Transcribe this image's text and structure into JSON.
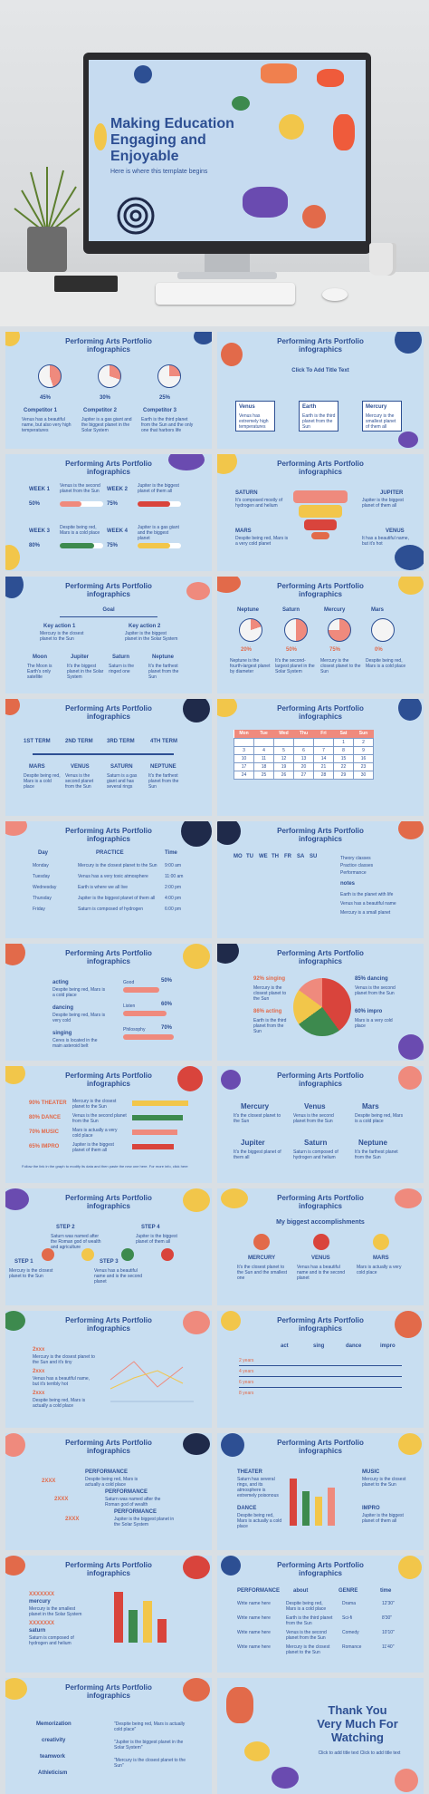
{
  "hero": {
    "title_line1": "Making Education",
    "title_line2": "Engaging and",
    "title_line3": "Enjoyable",
    "subtitle": "Here is where this template begins"
  },
  "slide_title_line1": "Performing Arts Portfolio",
  "slide_title_line2": "infographics",
  "s1": {
    "pcts": [
      "45%",
      "30%",
      "25%"
    ],
    "names": [
      "Competitor 1",
      "Competitor 2",
      "Competitor 3"
    ],
    "descs": [
      "Venus has a beautiful name, but also very high temperatures",
      "Jupiter is a gas giant and the biggest planet in the Solar System",
      "Earth is the third planet from the Sun and the only one that harbors life"
    ]
  },
  "s2": {
    "click": "Click To Add Title Text",
    "names": [
      "Venus",
      "Earth",
      "Mercury"
    ],
    "descs": [
      "Venus has extremely high temperatures",
      "Earth is the third planet from the Sun",
      "Mercury is the smallest planet of them all"
    ]
  },
  "s3": {
    "weeks": [
      "WEEK 1",
      "WEEK 2",
      "WEEK 3",
      "WEEK 4"
    ],
    "descs": [
      "Venus is the second planet from the Sun",
      "Jupiter is the biggest planet of them all",
      "Despite being red, Mars is a cold place",
      "Jupiter is a gas giant and the biggest planet"
    ],
    "pcts": [
      "50%",
      "75%",
      "80%",
      "75%"
    ]
  },
  "s4": {
    "labels": [
      "SATURN",
      "JUPITER",
      "MARS",
      "VENUS"
    ],
    "descs": [
      "It's composed mostly of hydrogen and helium",
      "Jupiter is the biggest planet of them all",
      "Despite being red, Mars is a very cold planet",
      "It has a beautiful name, but it's hot"
    ]
  },
  "s5": {
    "goal": "Goal",
    "actions": [
      "Key action 1",
      "Key action 2"
    ],
    "action_descs": [
      "Mercury is the closest planet to the Sun",
      "Jupiter is the biggest planet in the Solar System"
    ],
    "planets": [
      "Moon",
      "Jupiter",
      "Saturn",
      "Neptune"
    ],
    "planet_descs": [
      "The Moon is Earth's only satellite",
      "It's the biggest planet in the Solar System",
      "Saturn is the ringed one",
      "It's the farthest planet from the Sun"
    ]
  },
  "s6": {
    "names": [
      "Neptune",
      "Saturn",
      "Mercury",
      "Mars"
    ],
    "pcts": [
      "20%",
      "50%",
      "75%",
      "0%"
    ],
    "descs": [
      "Neptune is the fourth-largest planet by diameter",
      "It's the second-largest planet in the Solar System",
      "Mercury is the closest planet to the Sun",
      "Despite being red, Mars is a cold place"
    ]
  },
  "s7": {
    "terms": [
      "1ST TERM",
      "2ND TERM",
      "3RD TERM",
      "4TH TERM"
    ],
    "names": [
      "MARS",
      "VENUS",
      "SATURN",
      "NEPTUNE"
    ],
    "descs": [
      "Despite being red, Mars is a cold place",
      "Venus is the second planet from the Sun",
      "Saturn is a gas giant and has several rings",
      "It's the farthest planet from the Sun"
    ]
  },
  "s8": {
    "days": [
      "Mon",
      "Tue",
      "Wed",
      "Thu",
      "Fri",
      "Sat",
      "Sun"
    ],
    "rows": [
      [
        "",
        "",
        "",
        "",
        "",
        "1",
        "2"
      ],
      [
        "3",
        "4",
        "5",
        "6",
        "7",
        "8",
        "9"
      ],
      [
        "10",
        "11",
        "12",
        "13",
        "14",
        "15",
        "16"
      ],
      [
        "17",
        "18",
        "19",
        "20",
        "21",
        "22",
        "23"
      ],
      [
        "24",
        "25",
        "26",
        "27",
        "28",
        "29",
        "30"
      ]
    ]
  },
  "s9": {
    "headers": [
      "Day",
      "PRACTICE",
      "Time"
    ],
    "rows": [
      [
        "Monday",
        "Mercury is the closest planet to the Sun",
        "9:00 am"
      ],
      [
        "Tuesday",
        "Venus has a very toxic atmosphere",
        "11:00 am"
      ],
      [
        "Wednesday",
        "Earth is where we all live",
        "2:00 pm"
      ],
      [
        "Thursday",
        "Jupiter is the biggest planet of them all",
        "4:00 pm"
      ],
      [
        "Friday",
        "Saturn is composed of hydrogen",
        "6:00 pm"
      ]
    ]
  },
  "s10": {
    "days": [
      "MO",
      "TU",
      "WE",
      "TH",
      "FR",
      "SA",
      "SU"
    ],
    "legend": [
      "Theory classes",
      "Practice classes",
      "Performance"
    ],
    "notes": "notes",
    "note_lines": [
      "Earth is the planet with life",
      "Venus has a beautiful name",
      "Mercury is a small planet"
    ]
  },
  "s11": {
    "labels": [
      "acting",
      "dancing",
      "singing"
    ],
    "descs": [
      "Despite being red, Mars is a cold place",
      "Despite being red, Mars is very cold",
      "Ceres is located in the main asteroid belt"
    ],
    "bars": [
      "Good",
      "Listen",
      "Philosophy"
    ],
    "pcts": [
      "50%",
      "60%",
      "70%"
    ]
  },
  "s12": {
    "left": [
      "92% singing",
      "86% acting"
    ],
    "right": [
      "85% dancing",
      "60% impro"
    ],
    "left_descs": [
      "Mercury is the closest planet to the Sun",
      "Earth is the third planet from the Sun"
    ],
    "right_descs": [
      "Venus is the second planet from the Sun",
      "Mars is a very cold place"
    ]
  },
  "s13": {
    "rows": [
      "90% THEATER",
      "80% DANCE",
      "70% MUSIC",
      "65% IMPRO"
    ],
    "descs": [
      "Mercury is the closest planet to the Sun",
      "Venus is the second planet from the Sun",
      "Mars is actually a very cold place",
      "Jupiter is the biggest planet of them all"
    ],
    "footer": "Follow the link in the graph to modify its data and then paste the new one here. For more info, click here"
  },
  "s14": {
    "names": [
      "Mercury",
      "Venus",
      "Mars",
      "Jupiter",
      "Saturn",
      "Neptune"
    ],
    "descs": [
      "It's the closest planet to the Sun",
      "Venus is the second planet from the Sun",
      "Despite being red, Mars is a cold place",
      "It's the biggest planet of them all",
      "Saturn is composed of hydrogen and helium",
      "It's the farthest planet from the Sun"
    ]
  },
  "s15": {
    "steps": [
      "STEP 1",
      "STEP 2",
      "STEP 3",
      "STEP 4"
    ],
    "descs": [
      "Mercury is the closest planet to the Sun",
      "Saturn was named after the Roman god of wealth and agriculture",
      "Venus has a beautiful name and is the second planet",
      "Jupiter is the biggest planet of them all"
    ]
  },
  "s16": {
    "sub": "My biggest accomplishments",
    "names": [
      "MERCURY",
      "VENUS",
      "MARS"
    ],
    "descs": [
      "It's the closest planet to the Sun and the smallest one",
      "Venus has a beautiful name and is the second planet",
      "Mars is actually a very cold place"
    ]
  },
  "s17": {
    "labels": [
      "2xxx",
      "2xxx",
      "2xxx"
    ],
    "descs": [
      "Mercury is the closest planet to the Sun and it's tiny",
      "Venus has a beautiful name, but it's terribly hot",
      "Despite being red, Mars is actually a cold place"
    ]
  },
  "s18": {
    "cols": [
      "act",
      "sing",
      "dance",
      "impro"
    ],
    "rows": [
      "2 years",
      "4 years",
      "6 years",
      "8 years"
    ]
  },
  "s19": {
    "labels": [
      "PERFORMANCE",
      "PERFORMANCE",
      "PERFORMANCE"
    ],
    "years": [
      "2XXX",
      "2XXX",
      "2XXX"
    ],
    "descs": [
      "Despite being red, Mars is actually a cold place",
      "Saturn was named after the Roman god of wealth",
      "Jupiter is the biggest planet in the Solar System"
    ]
  },
  "s20": {
    "left": [
      "THEATER",
      "DANCE"
    ],
    "right": [
      "MUSIC",
      "IMPRO"
    ],
    "left_descs": [
      "Saturn has several rings, and its atmosphere is extremely poisonous",
      "Despite being red, Mars is actually a cold place"
    ],
    "right_descs": [
      "Mercury is the closest planet to the Sun",
      "Jupiter is the biggest planet of them all"
    ]
  },
  "s21": {
    "years": [
      "XXXXXXX",
      "XXXXXXX"
    ],
    "names": [
      "mercury",
      "saturn"
    ],
    "descs": [
      "Mercury is the smallest planet in the Solar System",
      "Saturn is composed of hydrogen and helium"
    ]
  },
  "s22": {
    "headers": [
      "PERFORMANCE",
      "about",
      "GENRE",
      "time"
    ],
    "rows": [
      [
        "Write name here",
        "Despite being red, Mars is a cold place",
        "Drama",
        "12'30\""
      ],
      [
        "Write name here",
        "Earth is the third planet from the Sun",
        "Sci-fi",
        "8'30\""
      ],
      [
        "Write name here",
        "Venus is the second planet from the Sun",
        "Comedy",
        "10'10\""
      ],
      [
        "Write name here",
        "Mercury is the closest planet to the Sun",
        "Romance",
        "11'40\""
      ]
    ]
  },
  "s23": {
    "labels": [
      "Memorization",
      "creativity",
      "teamwork",
      "Athleticism"
    ],
    "quotes": [
      "\"Despite being red, Mars is actually cold place\"",
      "\"Jupiter is the biggest planet in the Solar System\"",
      "\"Mercury is the closest planet to the Sun\""
    ]
  },
  "s24": {
    "line1": "Thank You",
    "line2": "Very Much For",
    "line3": "Watching",
    "sub": "Click to add title text   Click to add title text"
  },
  "colors": {
    "slide_bg": "#c8def1",
    "navy": "#2d4f93",
    "coral": "#ef8a7d",
    "red": "#d9443c",
    "green": "#3d8a4e",
    "yellow": "#f2c64a"
  }
}
